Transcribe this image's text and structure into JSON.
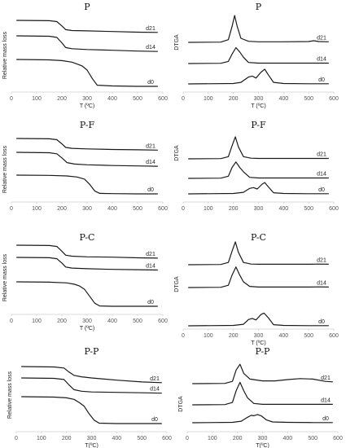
{
  "chart_data": [
    {
      "type": "line",
      "panel": "P-TGA",
      "title": "P",
      "ylabel": "Relative mass loss",
      "xlabel": "T (ºC)",
      "xlim": [
        0,
        600
      ],
      "xticks": [
        0,
        100,
        200,
        300,
        400,
        500,
        600
      ],
      "series": [
        {
          "name": "d21",
          "x": [
            20,
            150,
            180,
            200,
            215,
            240,
            300,
            400,
            500,
            580
          ],
          "y": [
            1.0,
            0.99,
            0.96,
            0.82,
            0.7,
            0.67,
            0.66,
            0.64,
            0.62,
            0.61
          ]
        },
        {
          "name": "d14",
          "x": [
            20,
            150,
            180,
            200,
            215,
            240,
            300,
            400,
            500,
            580
          ],
          "y": [
            1.0,
            0.99,
            0.96,
            0.82,
            0.7,
            0.67,
            0.65,
            0.63,
            0.61,
            0.6
          ]
        },
        {
          "name": "d0",
          "x": [
            20,
            150,
            200,
            240,
            260,
            280,
            300,
            320,
            340,
            400,
            500,
            580
          ],
          "y": [
            1.0,
            0.99,
            0.97,
            0.93,
            0.88,
            0.83,
            0.72,
            0.5,
            0.32,
            0.3,
            0.29,
            0.29
          ]
        }
      ]
    },
    {
      "type": "line",
      "panel": "P-DTGA",
      "title": "P",
      "ylabel": "DTGA",
      "xlabel": "T (ºC)",
      "xlim": [
        0,
        600
      ],
      "xticks": [
        0,
        100,
        200,
        300,
        400,
        500,
        600
      ],
      "series": [
        {
          "name": "d21",
          "x": [
            20,
            150,
            180,
            195,
            205,
            215,
            230,
            260,
            300,
            400,
            500,
            520,
            540,
            580
          ],
          "y": [
            0,
            0.01,
            0.1,
            0.6,
            1.0,
            0.6,
            0.15,
            0.04,
            0.02,
            0.02,
            0.03,
            0.06,
            0.03,
            0.02
          ]
        },
        {
          "name": "d14",
          "x": [
            20,
            150,
            180,
            195,
            210,
            225,
            240,
            260,
            300,
            400,
            500,
            580
          ],
          "y": [
            0,
            0.01,
            0.1,
            0.45,
            0.75,
            0.55,
            0.3,
            0.05,
            0.02,
            0.02,
            0.02,
            0.02
          ]
        },
        {
          "name": "d0",
          "x": [
            20,
            200,
            230,
            260,
            275,
            290,
            310,
            325,
            340,
            360,
            400,
            500,
            580
          ],
          "y": [
            0,
            0.02,
            0.08,
            0.35,
            0.4,
            0.3,
            0.6,
            0.75,
            0.45,
            0.08,
            0.02,
            0.01,
            0.01
          ]
        }
      ]
    },
    {
      "type": "line",
      "panel": "P-F-TGA",
      "title": "P-F",
      "ylabel": "Relative mass loss",
      "xlabel": "",
      "xlim": [
        0,
        600
      ],
      "xticks": [
        0,
        100,
        200,
        300,
        400,
        500,
        600
      ],
      "series": [
        {
          "name": "d21",
          "x": [
            20,
            150,
            180,
            200,
            215,
            240,
            300,
            400,
            500,
            580
          ],
          "y": [
            1.0,
            0.99,
            0.96,
            0.82,
            0.7,
            0.67,
            0.65,
            0.63,
            0.62,
            0.61
          ]
        },
        {
          "name": "d14",
          "x": [
            20,
            150,
            180,
            200,
            220,
            250,
            300,
            400,
            500,
            580
          ],
          "y": [
            1.0,
            0.99,
            0.96,
            0.85,
            0.72,
            0.68,
            0.66,
            0.64,
            0.63,
            0.62
          ]
        },
        {
          "name": "d0",
          "x": [
            20,
            150,
            220,
            260,
            290,
            310,
            330,
            350,
            400,
            500,
            580
          ],
          "y": [
            1.0,
            0.99,
            0.97,
            0.93,
            0.85,
            0.65,
            0.4,
            0.31,
            0.3,
            0.29,
            0.29
          ]
        }
      ]
    },
    {
      "type": "line",
      "panel": "P-F-DTGA",
      "title": "P-F",
      "ylabel": "DTGA",
      "xlabel": "",
      "xlim": [
        0,
        600
      ],
      "xticks": [
        0,
        100,
        200,
        300,
        400,
        500,
        600
      ],
      "series": [
        {
          "name": "d21",
          "x": [
            20,
            150,
            180,
            195,
            208,
            220,
            240,
            270,
            300,
            400,
            500,
            580
          ],
          "y": [
            0,
            0.01,
            0.1,
            0.6,
            1.0,
            0.55,
            0.1,
            0.03,
            0.02,
            0.02,
            0.02,
            0.02
          ]
        },
        {
          "name": "d14",
          "x": [
            20,
            150,
            180,
            195,
            210,
            225,
            240,
            265,
            300,
            400,
            500,
            580
          ],
          "y": [
            0,
            0.01,
            0.1,
            0.5,
            0.75,
            0.5,
            0.3,
            0.05,
            0.02,
            0.02,
            0.02,
            0.02
          ]
        },
        {
          "name": "d0",
          "x": [
            20,
            200,
            240,
            265,
            280,
            295,
            315,
            325,
            340,
            360,
            400,
            500,
            580
          ],
          "y": [
            0,
            0.02,
            0.08,
            0.28,
            0.32,
            0.25,
            0.5,
            0.58,
            0.35,
            0.06,
            0.02,
            0.01,
            0.01
          ]
        }
      ]
    },
    {
      "type": "line",
      "panel": "P-C-TGA",
      "title": "P-C",
      "ylabel": "Relative mass loss",
      "xlabel": "T (ºC)",
      "xlim": [
        0,
        600
      ],
      "xticks": [
        0,
        100,
        200,
        300,
        400,
        500,
        600
      ],
      "series": [
        {
          "name": "d21",
          "x": [
            20,
            150,
            180,
            200,
            215,
            240,
            300,
            400,
            500,
            580
          ],
          "y": [
            1.0,
            0.99,
            0.96,
            0.82,
            0.7,
            0.67,
            0.65,
            0.64,
            0.62,
            0.61
          ]
        },
        {
          "name": "d14",
          "x": [
            20,
            150,
            180,
            200,
            215,
            240,
            300,
            400,
            500,
            580
          ],
          "y": [
            1.0,
            0.99,
            0.96,
            0.83,
            0.71,
            0.68,
            0.66,
            0.64,
            0.63,
            0.62
          ]
        },
        {
          "name": "d0",
          "x": [
            20,
            150,
            220,
            250,
            270,
            290,
            310,
            330,
            350,
            400,
            500,
            580
          ],
          "y": [
            1.0,
            0.99,
            0.97,
            0.93,
            0.88,
            0.78,
            0.58,
            0.38,
            0.3,
            0.29,
            0.29,
            0.29
          ]
        }
      ]
    },
    {
      "type": "line",
      "panel": "P-C-DTGA",
      "title": "P-C",
      "ylabel": "DTGA",
      "xlabel": "T (ºC)",
      "xlim": [
        0,
        600
      ],
      "xticks": [
        0,
        100,
        200,
        300,
        400,
        500,
        600
      ],
      "series": [
        {
          "name": "d21",
          "x": [
            20,
            150,
            180,
            195,
            208,
            220,
            240,
            270,
            300,
            400,
            500,
            540,
            580
          ],
          "y": [
            0,
            0.01,
            0.1,
            0.6,
            1.0,
            0.55,
            0.1,
            0.03,
            0.02,
            0.02,
            0.02,
            0.03,
            0.02
          ]
        },
        {
          "name": "d14",
          "x": [
            20,
            150,
            180,
            195,
            210,
            225,
            240,
            265,
            300,
            400,
            500,
            540,
            580
          ],
          "y": [
            0,
            0.01,
            0.1,
            0.55,
            0.9,
            0.55,
            0.25,
            0.05,
            0.02,
            0.02,
            0.02,
            0.03,
            0.02
          ]
        },
        {
          "name": "d0",
          "x": [
            20,
            200,
            240,
            260,
            275,
            290,
            310,
            322,
            340,
            360,
            400,
            500,
            580
          ],
          "y": [
            0,
            0.02,
            0.08,
            0.32,
            0.38,
            0.3,
            0.58,
            0.65,
            0.4,
            0.06,
            0.02,
            0.01,
            0.01
          ]
        }
      ]
    },
    {
      "type": "line",
      "panel": "P-P-TGA",
      "title": "P-P",
      "ylabel": "Relative mass loss",
      "xlabel": "T(ºC)",
      "xlim": [
        0,
        600
      ],
      "xticks": [
        0,
        100,
        200,
        300,
        400,
        500,
        600
      ],
      "series": [
        {
          "name": "d21",
          "x": [
            20,
            150,
            190,
            210,
            230,
            260,
            300,
            400,
            500,
            580
          ],
          "y": [
            1.0,
            0.99,
            0.96,
            0.85,
            0.76,
            0.72,
            0.69,
            0.63,
            0.58,
            0.56
          ]
        },
        {
          "name": "d14",
          "x": [
            20,
            150,
            190,
            210,
            230,
            260,
            300,
            400,
            500,
            580
          ],
          "y": [
            1.0,
            0.99,
            0.96,
            0.82,
            0.7,
            0.66,
            0.64,
            0.63,
            0.62,
            0.61
          ]
        },
        {
          "name": "d0",
          "x": [
            20,
            150,
            200,
            230,
            250,
            270,
            290,
            310,
            330,
            400,
            500,
            580
          ],
          "y": [
            1.0,
            0.99,
            0.97,
            0.93,
            0.85,
            0.75,
            0.55,
            0.38,
            0.3,
            0.29,
            0.29,
            0.29
          ]
        }
      ]
    },
    {
      "type": "line",
      "panel": "P-P-DTGA",
      "title": "P-P",
      "ylabel": "DTGA",
      "xlabel": "T(ºC)",
      "xlim": [
        0,
        600
      ],
      "xticks": [
        0,
        100,
        200,
        300,
        400,
        500,
        600
      ],
      "series": [
        {
          "name": "d21",
          "x": [
            20,
            150,
            180,
            195,
            210,
            225,
            250,
            300,
            350,
            400,
            450,
            500,
            550,
            580
          ],
          "y": [
            0,
            0.01,
            0.1,
            0.6,
            0.85,
            0.45,
            0.2,
            0.12,
            0.12,
            0.18,
            0.22,
            0.2,
            0.1,
            0.08
          ]
        },
        {
          "name": "d14",
          "x": [
            20,
            150,
            180,
            195,
            210,
            225,
            240,
            265,
            300,
            400,
            500,
            580
          ],
          "y": [
            0,
            0.01,
            0.1,
            0.6,
            0.95,
            0.6,
            0.3,
            0.06,
            0.02,
            0.02,
            0.02,
            0.02
          ]
        },
        {
          "name": "d0",
          "x": [
            20,
            180,
            215,
            240,
            255,
            265,
            280,
            295,
            315,
            340,
            400,
            500,
            580
          ],
          "y": [
            0,
            0.02,
            0.08,
            0.28,
            0.38,
            0.36,
            0.42,
            0.35,
            0.15,
            0.04,
            0.02,
            0.01,
            0.01
          ]
        }
      ]
    }
  ]
}
